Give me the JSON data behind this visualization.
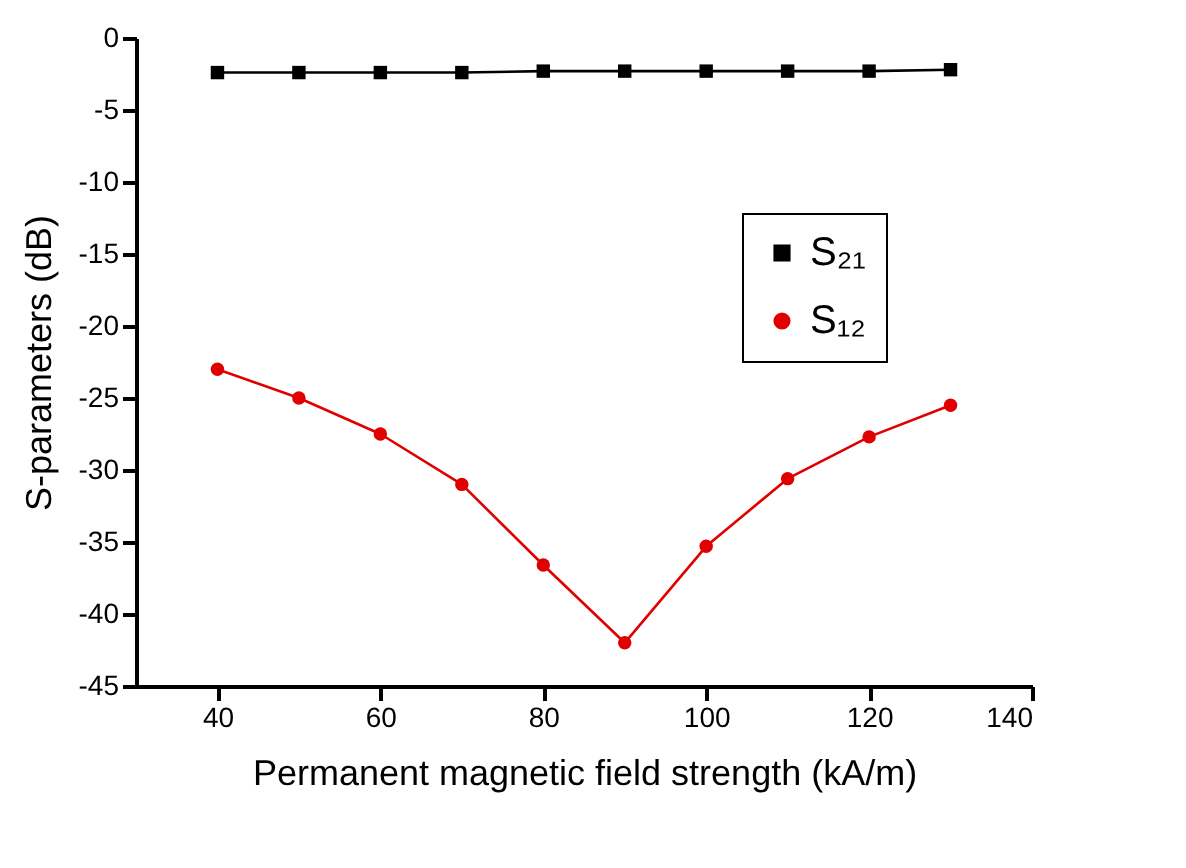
{
  "chart_data": {
    "type": "line",
    "xlabel": "Permanent magnetic field strength (kA/m)",
    "ylabel": "S-parameters (dB)",
    "x": [
      40,
      50,
      60,
      70,
      80,
      90,
      100,
      110,
      120,
      130
    ],
    "xlim": [
      30,
      140
    ],
    "xticks": [
      40,
      60,
      80,
      100,
      120,
      140
    ],
    "ylim": [
      -45,
      0
    ],
    "yticks": [
      -45,
      -40,
      -35,
      -30,
      -25,
      -20,
      -15,
      -10,
      -5,
      0
    ],
    "grid": false,
    "legend": "right",
    "line_style": "solid",
    "series": [
      {
        "name": "S₂₁",
        "color": "#000000",
        "marker": "square",
        "values": [
          -2.4,
          -2.4,
          -2.4,
          -2.4,
          -2.3,
          -2.3,
          -2.3,
          -2.3,
          -2.3,
          -2.2
        ]
      },
      {
        "name": "S₁₂",
        "color": "#e00000",
        "marker": "circle",
        "values": [
          -23,
          -25,
          -27.5,
          -31,
          -36.6,
          -42,
          -35.3,
          -30.6,
          -27.7,
          -25.5
        ]
      }
    ]
  }
}
